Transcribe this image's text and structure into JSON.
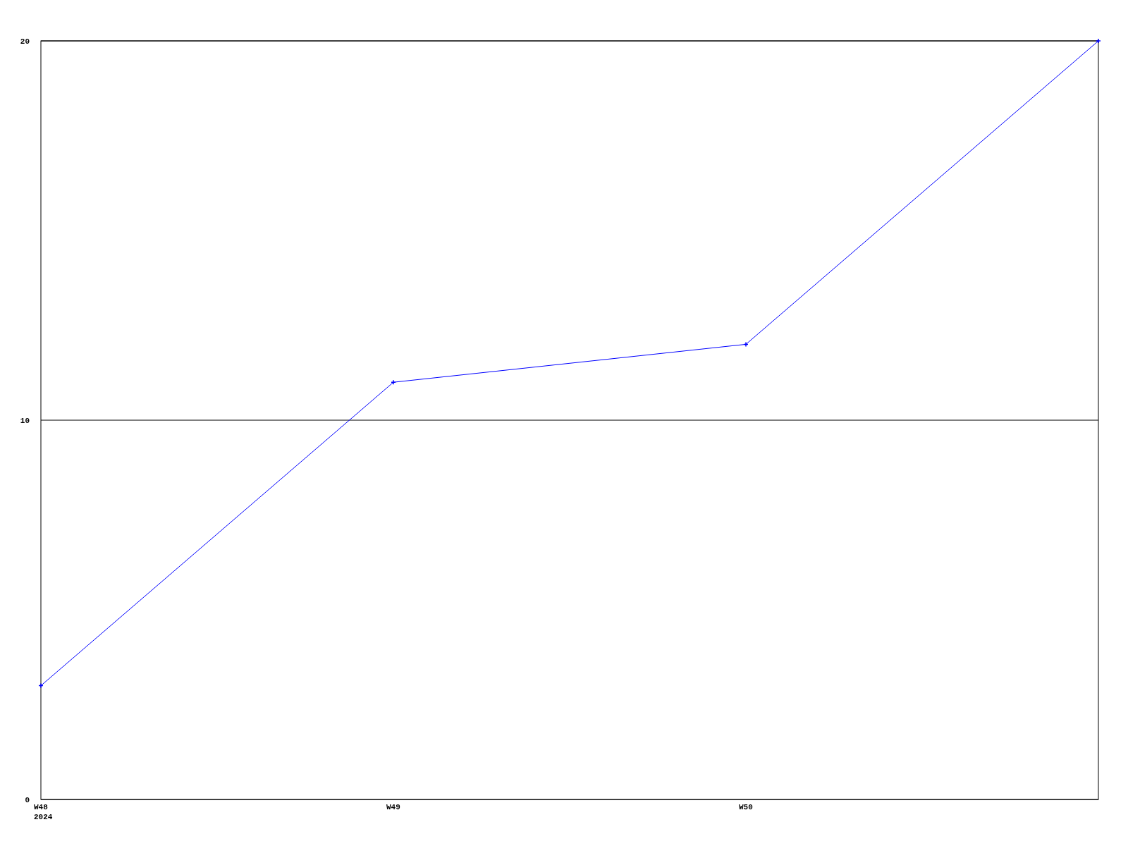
{
  "chart_data": {
    "type": "line",
    "categories": [
      "W48\n2024",
      "W49",
      "W50",
      null
    ],
    "series": [
      {
        "color": "#0000ff",
        "values": [
          3,
          11,
          12,
          20
        ]
      }
    ],
    "ylim": [
      0,
      20
    ],
    "yticks": [
      0,
      10,
      20
    ],
    "grid": "y",
    "marker": "cross",
    "line_style": "solid"
  }
}
